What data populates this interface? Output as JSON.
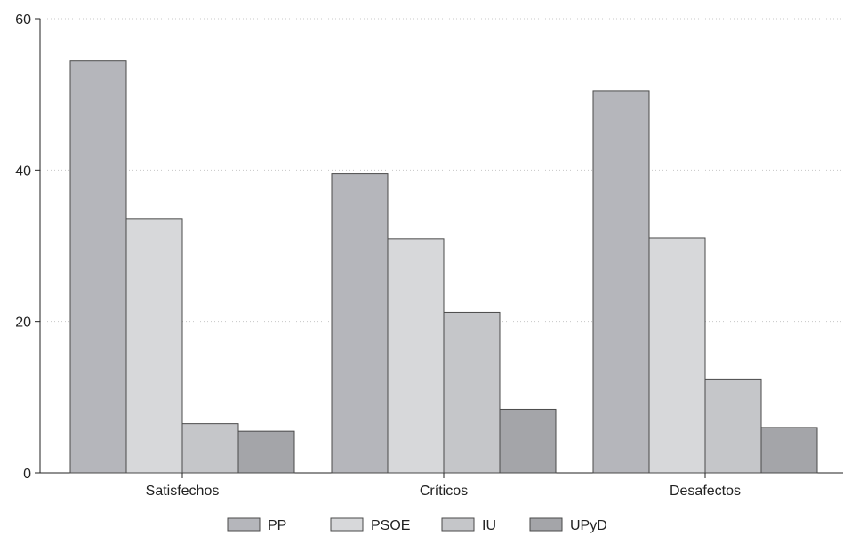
{
  "chart_data": {
    "type": "bar",
    "categories": [
      "Satisfechos",
      "Críticos",
      "Desafectos"
    ],
    "series": [
      {
        "name": "PP",
        "values": [
          54.4,
          39.5,
          50.5
        ],
        "color": "#b5b6bb"
      },
      {
        "name": "PSOE",
        "values": [
          33.6,
          30.9,
          31.0
        ],
        "color": "#d7d8da"
      },
      {
        "name": "IU",
        "values": [
          6.5,
          21.2,
          12.4
        ],
        "color": "#c5c6c9"
      },
      {
        "name": "UPyD",
        "values": [
          5.5,
          8.4,
          6.0
        ],
        "color": "#a4a5a9"
      }
    ],
    "ylim": [
      0,
      60
    ],
    "yticks": [
      0,
      20,
      40,
      60
    ],
    "grid": true,
    "legend": "bottom"
  }
}
